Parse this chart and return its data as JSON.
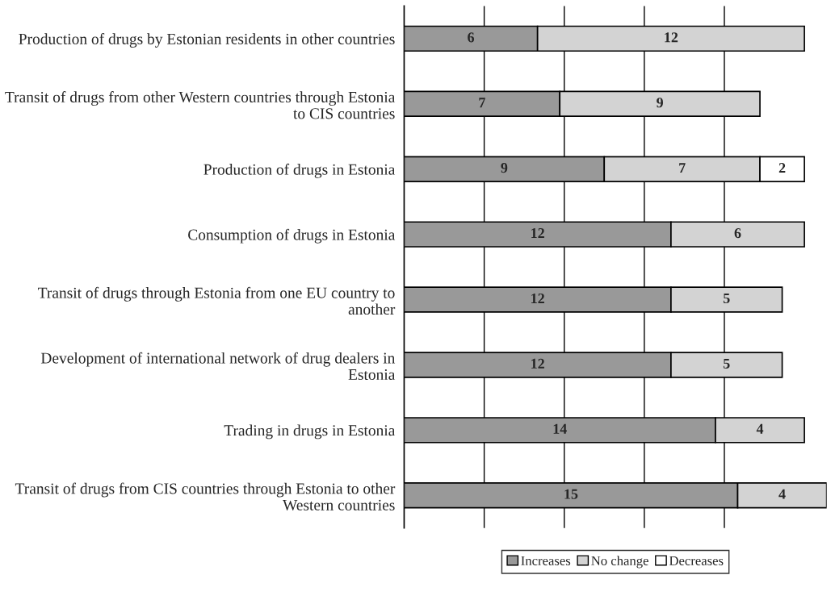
{
  "chart_data": {
    "type": "bar",
    "orientation": "horizontal",
    "stacked": true,
    "data_labels": true,
    "categories": [
      "Production of drugs by Estonian residents in other countries",
      "Transit of drugs from other Western countries through Estonia to CIS countries",
      "Production of drugs in Estonia",
      "Consumption of drugs in Estonia",
      "Transit of drugs through Estonia from one EU country to another",
      "Development of international network of drug dealers in Estonia",
      "Trading in drugs in Estonia",
      "Transit of drugs from CIS countries through Estonia to other Western countries"
    ],
    "series": [
      {
        "name": "Increases",
        "color": "#999999",
        "values": [
          6,
          7,
          9,
          12,
          12,
          12,
          14,
          15
        ]
      },
      {
        "name": "No change",
        "color": "#d3d3d3",
        "values": [
          12,
          9,
          7,
          6,
          5,
          5,
          4,
          4
        ]
      },
      {
        "name": "Decreases",
        "color": "#ffffff",
        "values": [
          null,
          null,
          2,
          null,
          null,
          null,
          null,
          null
        ]
      }
    ],
    "xlim": [
      0,
      19
    ],
    "xticks": [
      {
        "value": 3.6,
        "label": null
      },
      {
        "value": 7.2,
        "label": null
      },
      {
        "value": 10.8,
        "label": null
      },
      {
        "value": 14.4,
        "label": null
      }
    ],
    "tick_labels": "y",
    "grid": "x",
    "legend": "bottom"
  }
}
